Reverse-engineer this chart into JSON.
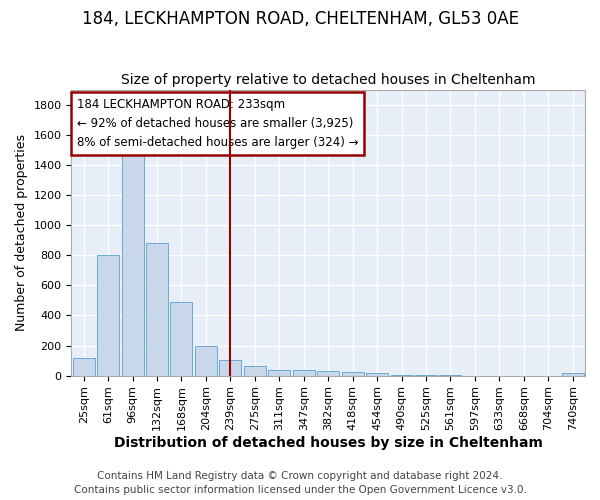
{
  "title1": "184, LECKHAMPTON ROAD, CHELTENHAM, GL53 0AE",
  "title2": "Size of property relative to detached houses in Cheltenham",
  "xlabel": "Distribution of detached houses by size in Cheltenham",
  "ylabel": "Number of detached properties",
  "footer1": "Contains HM Land Registry data © Crown copyright and database right 2024.",
  "footer2": "Contains public sector information licensed under the Open Government Licence v3.0.",
  "categories": [
    "25sqm",
    "61sqm",
    "96sqm",
    "132sqm",
    "168sqm",
    "204sqm",
    "239sqm",
    "275sqm",
    "311sqm",
    "347sqm",
    "382sqm",
    "418sqm",
    "454sqm",
    "490sqm",
    "525sqm",
    "561sqm",
    "597sqm",
    "633sqm",
    "668sqm",
    "704sqm",
    "740sqm"
  ],
  "values": [
    120,
    800,
    1480,
    880,
    490,
    200,
    105,
    65,
    40,
    35,
    30,
    25,
    15,
    5,
    2,
    2,
    1,
    1,
    0,
    0,
    15
  ],
  "bar_color": "#c8d8ea",
  "bar_edge_color": "#6aaad4",
  "vline_x_idx": 6,
  "vline_color": "#990000",
  "annotation_line1": "184 LECKHAMPTON ROAD: 233sqm",
  "annotation_line2": "← 92% of detached houses are smaller (3,925)",
  "annotation_line3": "8% of semi-detached houses are larger (324) →",
  "annotation_box_color": "#ffffff",
  "annotation_box_edge": "#990000",
  "ylim": [
    0,
    1900
  ],
  "yticks": [
    0,
    200,
    400,
    600,
    800,
    1000,
    1200,
    1400,
    1600,
    1800
  ],
  "bg_color": "#e8eef8",
  "grid_color": "#ffffff",
  "fig_bg_color": "#ffffff",
  "title1_fontsize": 12,
  "title2_fontsize": 10,
  "xlabel_fontsize": 10,
  "ylabel_fontsize": 9,
  "tick_fontsize": 8,
  "footer_fontsize": 7.5
}
